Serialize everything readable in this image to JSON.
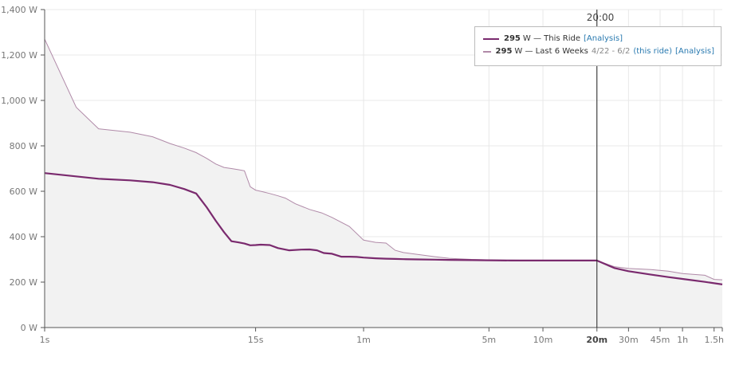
{
  "chart_data": {
    "type": "line",
    "x_scale": "log",
    "x_unit": "seconds",
    "y_unit": "W",
    "ylim": [
      0,
      1400
    ],
    "xlim_seconds": [
      1,
      6000
    ],
    "grid": true,
    "y_ticks": [
      {
        "value": 0,
        "label": "0 W"
      },
      {
        "value": 200,
        "label": "200 W"
      },
      {
        "value": 400,
        "label": "400 W"
      },
      {
        "value": 600,
        "label": "600 W"
      },
      {
        "value": 800,
        "label": "800 W"
      },
      {
        "value": 1000,
        "label": "1,000 W"
      },
      {
        "value": 1200,
        "label": "1,200 W"
      },
      {
        "value": 1400,
        "label": "1,400 W"
      }
    ],
    "x_ticks": [
      {
        "value": 1,
        "label": "1s",
        "bold": false
      },
      {
        "value": 15,
        "label": "15s",
        "bold": false
      },
      {
        "value": 60,
        "label": "1m",
        "bold": false
      },
      {
        "value": 300,
        "label": "5m",
        "bold": false
      },
      {
        "value": 600,
        "label": "10m",
        "bold": false
      },
      {
        "value": 1200,
        "label": "20m",
        "bold": true
      },
      {
        "value": 1800,
        "label": "30m",
        "bold": false
      },
      {
        "value": 2700,
        "label": "45m",
        "bold": false
      },
      {
        "value": 3600,
        "label": "1h",
        "bold": false
      },
      {
        "value": 5400,
        "label": "1.5h",
        "bold": false
      }
    ],
    "cursor": {
      "x": 1200,
      "label": "20:00"
    },
    "series": [
      {
        "name": "This Ride",
        "color": "#7a2a6e",
        "x": [
          1,
          2,
          3,
          4,
          5,
          6,
          7,
          8,
          9,
          10,
          11,
          12,
          13,
          14,
          15,
          16,
          18,
          20,
          23,
          27,
          30,
          33,
          36,
          40,
          45,
          50,
          55,
          60,
          70,
          80,
          90,
          100,
          120,
          150,
          180,
          240,
          300,
          400,
          500,
          600,
          700,
          800,
          1000,
          1200,
          1500,
          1800,
          2400,
          3000,
          3600,
          4800,
          6000
        ],
        "y": [
          680,
          655,
          648,
          640,
          628,
          610,
          590,
          530,
          470,
          420,
          380,
          375,
          370,
          362,
          363,
          365,
          363,
          350,
          340,
          343,
          344,
          340,
          328,
          325,
          312,
          312,
          311,
          308,
          305,
          303,
          302,
          301,
          300,
          299,
          298,
          297,
          296,
          295,
          295,
          295,
          295,
          295,
          295,
          295,
          262,
          248,
          233,
          222,
          214,
          201,
          190
        ]
      },
      {
        "name": "Last 6 Weeks",
        "color": "#b08aa8",
        "x": [
          1,
          1.5,
          2,
          3,
          4,
          5,
          6,
          7,
          8,
          9,
          10,
          11,
          12,
          13,
          14,
          15,
          16,
          18,
          20,
          22,
          25,
          30,
          35,
          40,
          50,
          60,
          70,
          80,
          90,
          100,
          120,
          150,
          180,
          240,
          300,
          400,
          500,
          600,
          800,
          1000,
          1200,
          1500,
          1800,
          2400,
          3000,
          3600,
          4800,
          5400,
          6000
        ],
        "y": [
          1270,
          970,
          875,
          860,
          840,
          810,
          790,
          770,
          745,
          720,
          705,
          700,
          695,
          690,
          620,
          605,
          600,
          590,
          580,
          570,
          545,
          520,
          505,
          485,
          445,
          385,
          375,
          372,
          340,
          330,
          322,
          312,
          305,
          300,
          298,
          297,
          296,
          295,
          295,
          295,
          295,
          268,
          260,
          255,
          248,
          238,
          230,
          212,
          210
        ]
      }
    ]
  },
  "legend": {
    "row1": {
      "value": "295",
      "unit": "W",
      "text": "— This Ride",
      "link": "[Analysis]"
    },
    "row2": {
      "value": "295",
      "unit": "W",
      "text": "— Last 6 Weeks",
      "dates": "4/22 - 6/2",
      "link_ride": "(this ride)",
      "link": "[Analysis]"
    }
  }
}
